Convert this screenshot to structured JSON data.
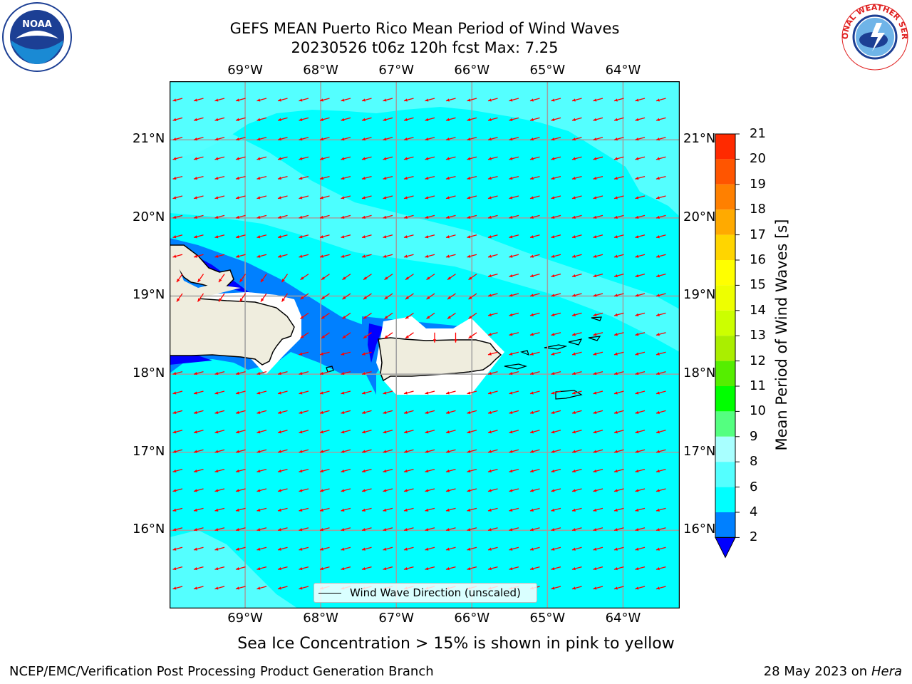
{
  "title": {
    "line1": "GEFS MEAN Puerto Rico Mean Period of Wind Waves",
    "line2": "20230526 t06z 120h fcst   Max: 7.25"
  },
  "map": {
    "lon_labels": [
      "69°W",
      "68°W",
      "67°W",
      "66°W",
      "65°W",
      "64°W"
    ],
    "lat_labels": [
      "21°N",
      "20°N",
      "19°N",
      "18°N",
      "17°N",
      "16°N"
    ],
    "lon_range": [
      -70.0,
      -63.25
    ],
    "lat_range": [
      15.0,
      21.75
    ],
    "legend_label": "Wind Wave Direction (unscaled)",
    "arrow_color": "#ff0000",
    "land_color": "#efedde",
    "field_color_low": "#00ffff",
    "field_color_mid": "#54ffff",
    "field_color_dark": "#0080ff"
  },
  "colorbar": {
    "label": "Mean Period of Wind Waves [s]",
    "ticks": [
      "2",
      "4",
      "6",
      "8",
      "9",
      "10",
      "11",
      "12",
      "13",
      "14",
      "15",
      "16",
      "17",
      "18",
      "19",
      "20",
      "21"
    ],
    "colors": [
      "#0080ff",
      "#00ffff",
      "#54ffff",
      "#a8ffff",
      "#54ff80",
      "#00ff00",
      "#55ee00",
      "#aaee00",
      "#ccff00",
      "#eeff00",
      "#ffff00",
      "#ffd500",
      "#ffaa00",
      "#ff8000",
      "#ff5500",
      "#ff2a00"
    ],
    "extend_color": "#0000ff"
  },
  "sea_ice_note": "Sea Ice Concentration > 15% is shown in pink to yellow",
  "footer": {
    "left": "NCEP/EMC/Verification Post Processing Product Generation Branch",
    "right_date": "28 May 2023 on",
    "right_host": "Hera"
  },
  "logos": {
    "noaa_text": "NOAA",
    "nws_text": "NATIONAL WEATHER SERVICE"
  }
}
